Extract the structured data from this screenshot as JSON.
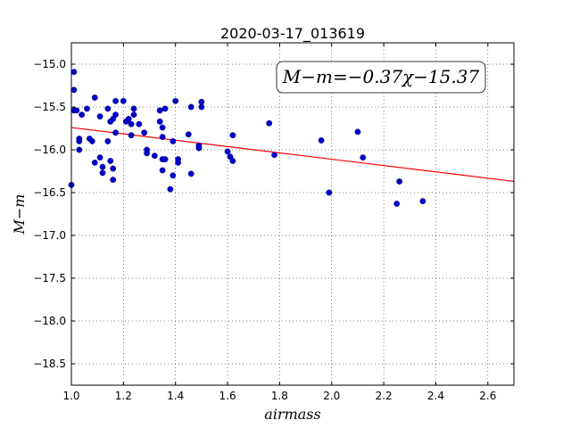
{
  "chart_data": {
    "type": "scatter",
    "title": "2020-03-17_013619",
    "xlabel": "airmass",
    "ylabel": "M−m",
    "xlim": [
      1.0,
      2.7
    ],
    "ylim": [
      -18.75,
      -14.75
    ],
    "y_inverted": true,
    "grid": true,
    "xticks": [
      1.0,
      1.2,
      1.4,
      1.6,
      1.8,
      2.0,
      2.2,
      2.4,
      2.6
    ],
    "xtick_labels": [
      "1.0",
      "1.2",
      "1.4",
      "1.6",
      "1.8",
      "2.0",
      "2.2",
      "2.4",
      "2.6"
    ],
    "yticks": [
      -15.0,
      -15.5,
      -16.0,
      -16.5,
      -17.0,
      -17.5,
      -18.0,
      -18.5
    ],
    "ytick_labels": [
      "−15.0",
      "−15.5",
      "−16.0",
      "−16.5",
      "−17.0",
      "−17.5",
      "−18.0",
      "−18.5"
    ],
    "annotation": "M−m=−0.37χ−15.37",
    "fit": {
      "slope": -0.37,
      "intercept": -15.37,
      "color": "#ff0000"
    },
    "point_color": "#0000cc",
    "points": [
      [
        1.0,
        -16.41
      ],
      [
        1.01,
        -15.09
      ],
      [
        1.01,
        -15.3
      ],
      [
        1.01,
        -15.54
      ],
      [
        1.02,
        -15.54
      ],
      [
        1.03,
        -15.9
      ],
      [
        1.03,
        -15.87
      ],
      [
        1.03,
        -16.0
      ],
      [
        1.04,
        -15.59
      ],
      [
        1.06,
        -15.52
      ],
      [
        1.07,
        -15.87
      ],
      [
        1.08,
        -15.9
      ],
      [
        1.09,
        -15.39
      ],
      [
        1.09,
        -16.15
      ],
      [
        1.11,
        -16.09
      ],
      [
        1.11,
        -15.61
      ],
      [
        1.12,
        -16.2
      ],
      [
        1.12,
        -16.27
      ],
      [
        1.14,
        -15.9
      ],
      [
        1.14,
        -15.52
      ],
      [
        1.15,
        -15.67
      ],
      [
        1.15,
        -16.13
      ],
      [
        1.16,
        -16.22
      ],
      [
        1.16,
        -16.35
      ],
      [
        1.16,
        -15.64
      ],
      [
        1.17,
        -15.59
      ],
      [
        1.17,
        -15.43
      ],
      [
        1.17,
        -15.8
      ],
      [
        1.2,
        -15.43
      ],
      [
        1.21,
        -15.67
      ],
      [
        1.22,
        -15.64
      ],
      [
        1.23,
        -15.7
      ],
      [
        1.23,
        -15.83
      ],
      [
        1.24,
        -15.59
      ],
      [
        1.24,
        -15.52
      ],
      [
        1.26,
        -15.7
      ],
      [
        1.28,
        -15.8
      ],
      [
        1.29,
        -16.04
      ],
      [
        1.29,
        -16.0
      ],
      [
        1.32,
        -16.07
      ],
      [
        1.34,
        -15.54
      ],
      [
        1.34,
        -15.67
      ],
      [
        1.35,
        -16.11
      ],
      [
        1.35,
        -16.24
      ],
      [
        1.35,
        -15.74
      ],
      [
        1.35,
        -15.85
      ],
      [
        1.36,
        -16.11
      ],
      [
        1.36,
        -15.52
      ],
      [
        1.38,
        -16.46
      ],
      [
        1.39,
        -15.9
      ],
      [
        1.39,
        -16.3
      ],
      [
        1.4,
        -15.43
      ],
      [
        1.41,
        -16.11
      ],
      [
        1.41,
        -16.15
      ],
      [
        1.45,
        -15.82
      ],
      [
        1.46,
        -15.5
      ],
      [
        1.46,
        -16.28
      ],
      [
        1.49,
        -15.98
      ],
      [
        1.49,
        -15.95
      ],
      [
        1.5,
        -15.44
      ],
      [
        1.5,
        -15.5
      ],
      [
        1.6,
        -16.02
      ],
      [
        1.61,
        -16.08
      ],
      [
        1.62,
        -16.13
      ],
      [
        1.62,
        -15.83
      ],
      [
        1.76,
        -15.69
      ],
      [
        1.78,
        -16.06
      ],
      [
        1.96,
        -15.89
      ],
      [
        1.99,
        -16.5
      ],
      [
        2.1,
        -15.79
      ],
      [
        2.12,
        -16.09
      ],
      [
        2.25,
        -16.63
      ],
      [
        2.26,
        -16.37
      ],
      [
        2.35,
        -16.6
      ]
    ]
  }
}
